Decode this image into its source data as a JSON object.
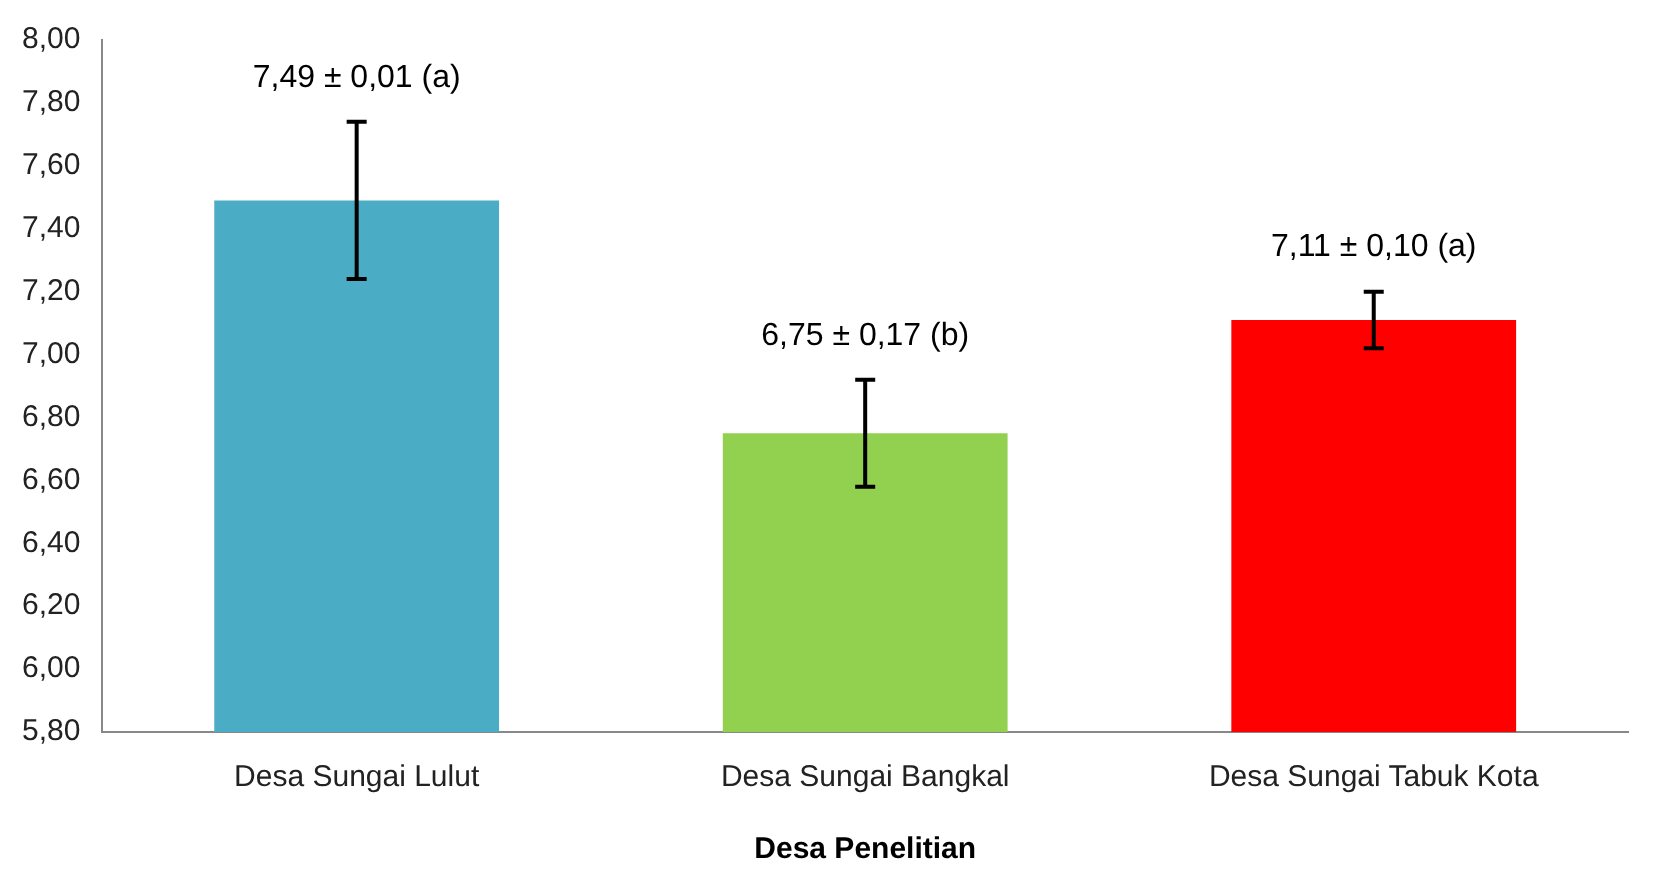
{
  "chart_data": {
    "type": "bar",
    "xlabel": "Desa Penelitian",
    "categories": [
      "Desa Sungai Lulut",
      "Desa Sungai Bangkal",
      "Desa Sungai Tabuk Kota"
    ],
    "values": [
      7.49,
      6.75,
      7.11
    ],
    "colors": [
      "#4bacc6",
      "#92d050",
      "#ff0000"
    ],
    "errors": [
      0.25,
      0.17,
      0.09
    ],
    "ylim": [
      5.8,
      8.0
    ],
    "yticks": [
      {
        "value": 5.8,
        "label": "5,80"
      },
      {
        "value": 6.0,
        "label": "6,00"
      },
      {
        "value": 6.2,
        "label": "6,20"
      },
      {
        "value": 6.4,
        "label": "6,40"
      },
      {
        "value": 6.6,
        "label": "6,60"
      },
      {
        "value": 6.8,
        "label": "6,80"
      },
      {
        "value": 7.0,
        "label": "7,00"
      },
      {
        "value": 7.2,
        "label": "7,20"
      },
      {
        "value": 7.4,
        "label": "7,40"
      },
      {
        "value": 7.6,
        "label": "7,60"
      },
      {
        "value": 7.8,
        "label": "7,80"
      },
      {
        "value": 8.0,
        "label": "8,00"
      }
    ],
    "grid": false,
    "legend": false,
    "annotations": [
      {
        "text": "7,49 ± 0,01 (a)",
        "x": "Desa Sungai Lulut",
        "y": 7.74
      },
      {
        "text": "6,75 ± 0,17 (b)",
        "x": "Desa Sungai Bangkal",
        "y": 6.92
      },
      {
        "text": "7,11 ± 0,10 (a)",
        "x": "Desa Sungai Tabuk Kota",
        "y": 7.2
      }
    ]
  }
}
